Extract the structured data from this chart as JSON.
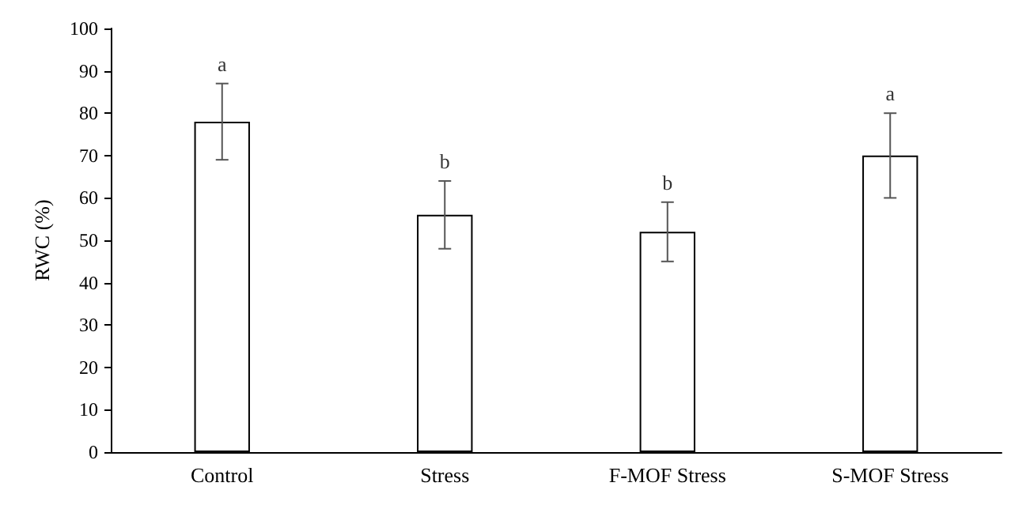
{
  "chart_data": {
    "type": "bar",
    "ylabel": "RWC (%)",
    "categories": [
      "Control",
      "Stress",
      "F-MOF Stress",
      "S-MOF Stress"
    ],
    "values": [
      78,
      56,
      52,
      70
    ],
    "errors": [
      9,
      8,
      7,
      10
    ],
    "color": "#ffffff",
    "ylim": [
      0,
      100
    ],
    "yticks": [
      0,
      10,
      20,
      30,
      40,
      50,
      60,
      70,
      80,
      90,
      100
    ],
    "grid": false,
    "annotations": [
      {
        "text": "a",
        "x": "Control",
        "y": 87
      },
      {
        "text": "b",
        "x": "Stress",
        "y": 64
      },
      {
        "text": "b",
        "x": "F-MOF Stress",
        "y": 59
      },
      {
        "text": "a",
        "x": "S-MOF Stress",
        "y": 80
      }
    ]
  }
}
